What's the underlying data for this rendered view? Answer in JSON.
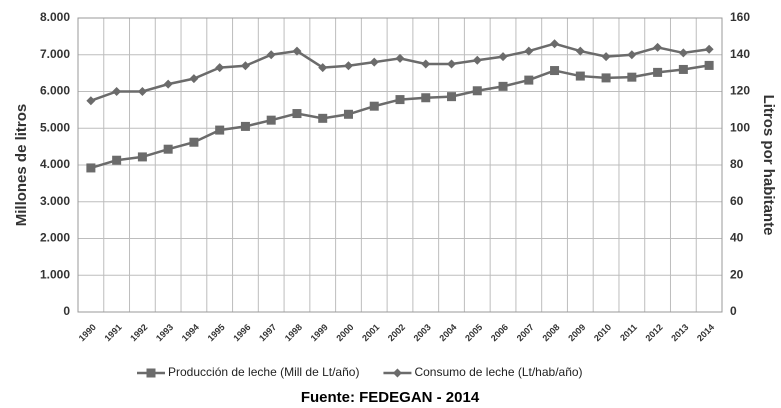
{
  "chart_data": {
    "type": "line",
    "ylabel": "Millones de litros",
    "y2label": "Litros por habitante",
    "source": "Fuente: FEDEGAN - 2014",
    "categories": [
      "1990",
      "1991",
      "1992",
      "1993",
      "1994",
      "1995",
      "1996",
      "1997",
      "1998",
      "1999",
      "2000",
      "2001",
      "2002",
      "2003",
      "2004",
      "2005",
      "2006",
      "2007",
      "2008",
      "2009",
      "2010",
      "2011",
      "2012",
      "2013",
      "2014"
    ],
    "series": [
      {
        "name": "Producción de leche (Mill de Lt/año)",
        "color": "#6b6b6b",
        "marker": "square",
        "values": [
          3920,
          4130,
          4220,
          4430,
          4620,
          4950,
          5050,
          5220,
          5400,
          5270,
          5380,
          5600,
          5780,
          5830,
          5860,
          6020,
          6140,
          6310,
          6570,
          6420,
          6370,
          6390,
          6520,
          6600,
          6710
        ]
      },
      {
        "name": "Consumo de leche (Lt/hab/año)",
        "color": "#6b6b6b",
        "marker": "diamond",
        "axis": "y2",
        "values": [
          115,
          120,
          120,
          124,
          127,
          133,
          134,
          140,
          142,
          133,
          134,
          136,
          138,
          135,
          135,
          137,
          139,
          142,
          146,
          142,
          139,
          140,
          144,
          141,
          143
        ]
      }
    ],
    "ylim": [
      0,
      8000
    ],
    "yticks": [
      0,
      {
        "value": 1000,
        "label": "1.000"
      },
      {
        "value": 2000,
        "label": "2.000"
      },
      {
        "value": 3000,
        "label": "3.000"
      },
      {
        "value": 4000,
        "label": "4.000"
      },
      {
        "value": 5000,
        "label": "5.000"
      },
      {
        "value": 6000,
        "label": "6.000"
      },
      {
        "value": 7000,
        "label": "7.000"
      },
      {
        "value": 8000,
        "label": "8.000"
      }
    ],
    "y2lim": [
      0,
      160
    ],
    "y2ticks": [
      0,
      20,
      40,
      60,
      80,
      100,
      120,
      140,
      160
    ],
    "grid": true
  }
}
